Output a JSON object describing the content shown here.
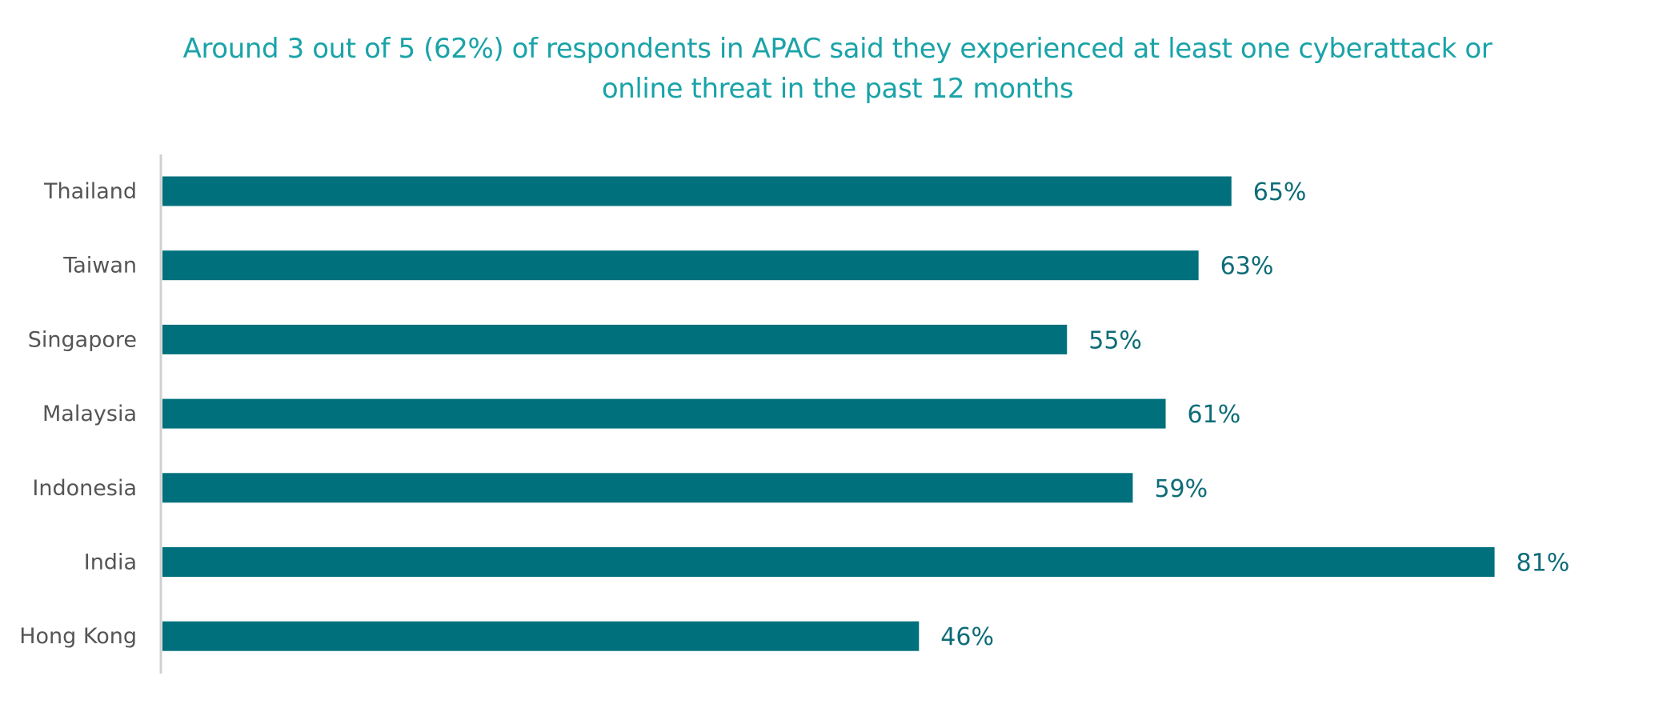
{
  "chart_data": {
    "type": "bar",
    "orientation": "horizontal",
    "title": "Around 3 out of 5 (62%) of respondents in APAC said they experienced at least one cyberattack or online threat in the past 12 months",
    "title_lines": [
      "Around 3 out of 5 (62%) of respondents in APAC said they experienced at least one cyberattack or",
      "online threat in the past 12 months"
    ],
    "categories": [
      "Thailand",
      "Taiwan",
      "Singapore",
      "Malaysia",
      "Indonesia",
      "India",
      "Hong Kong"
    ],
    "values": [
      65,
      63,
      55,
      61,
      59,
      81,
      46
    ],
    "value_labels": [
      "65%",
      "63%",
      "55%",
      "61%",
      "59%",
      "81%",
      "46%"
    ],
    "unit": "%",
    "xlabel": "",
    "ylabel": "",
    "xlim": [
      0,
      100
    ],
    "grid": false,
    "legend": "none",
    "bar_color": "#00707c",
    "title_color": "#1aa3a8"
  }
}
